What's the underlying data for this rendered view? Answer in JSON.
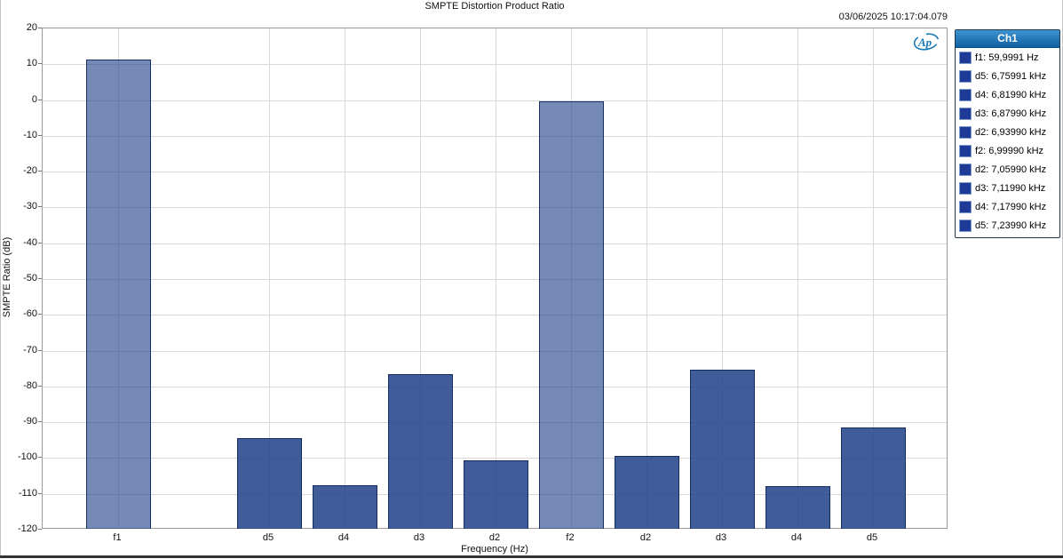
{
  "header": {
    "timestamp": "03/06/2025 10:17:04.079"
  },
  "legend": {
    "header": "Ch1",
    "swatch_color": "#1c3a96",
    "items": [
      {
        "label": "f1: 59,9991 Hz"
      },
      {
        "label": "d5: 6,75991 kHz"
      },
      {
        "label": "d4: 6,81990 kHz"
      },
      {
        "label": "d3: 6,87990 kHz"
      },
      {
        "label": "d2: 6,93990 kHz"
      },
      {
        "label": "f2: 6,99990 kHz"
      },
      {
        "label": "d2: 7,05990 kHz"
      },
      {
        "label": "d3: 7,11990 kHz"
      },
      {
        "label": "d4: 7,17990 kHz"
      },
      {
        "label": "d5: 7,23990 kHz"
      }
    ]
  },
  "chart_data": {
    "type": "bar",
    "title": "SMPTE Distortion Product Ratio",
    "xlabel": "Frequency (Hz)",
    "ylabel": "SMPTE Ratio (dB)",
    "ylim": [
      -120,
      20
    ],
    "ytick_step": 10,
    "slot_count": 12,
    "grid": true,
    "legend_position": "right",
    "colors": {
      "fundamental": "rgba(30,65,135,0.62)",
      "distortion": "rgba(30,65,135,0.85)",
      "bar_border": "rgba(16,40,88,0.9)",
      "gridline": "#d9d9d9"
    },
    "bars": [
      {
        "category": "f1",
        "slot": 1,
        "value": 11.2,
        "series": "fundamental"
      },
      {
        "category": "d5",
        "slot": 3,
        "value": -94.4,
        "series": "distortion"
      },
      {
        "category": "d4",
        "slot": 4,
        "value": -107.6,
        "series": "distortion"
      },
      {
        "category": "d3",
        "slot": 5,
        "value": -76.5,
        "series": "distortion"
      },
      {
        "category": "d2",
        "slot": 6,
        "value": -100.7,
        "series": "distortion"
      },
      {
        "category": "f2",
        "slot": 7,
        "value": -0.3,
        "series": "fundamental"
      },
      {
        "category": "d2",
        "slot": 8,
        "value": -99.4,
        "series": "distortion"
      },
      {
        "category": "d3",
        "slot": 9,
        "value": -75.2,
        "series": "distortion"
      },
      {
        "category": "d4",
        "slot": 10,
        "value": -107.9,
        "series": "distortion"
      },
      {
        "category": "d5",
        "slot": 11,
        "value": -91.4,
        "series": "distortion"
      }
    ],
    "logo_text": "Ap"
  }
}
